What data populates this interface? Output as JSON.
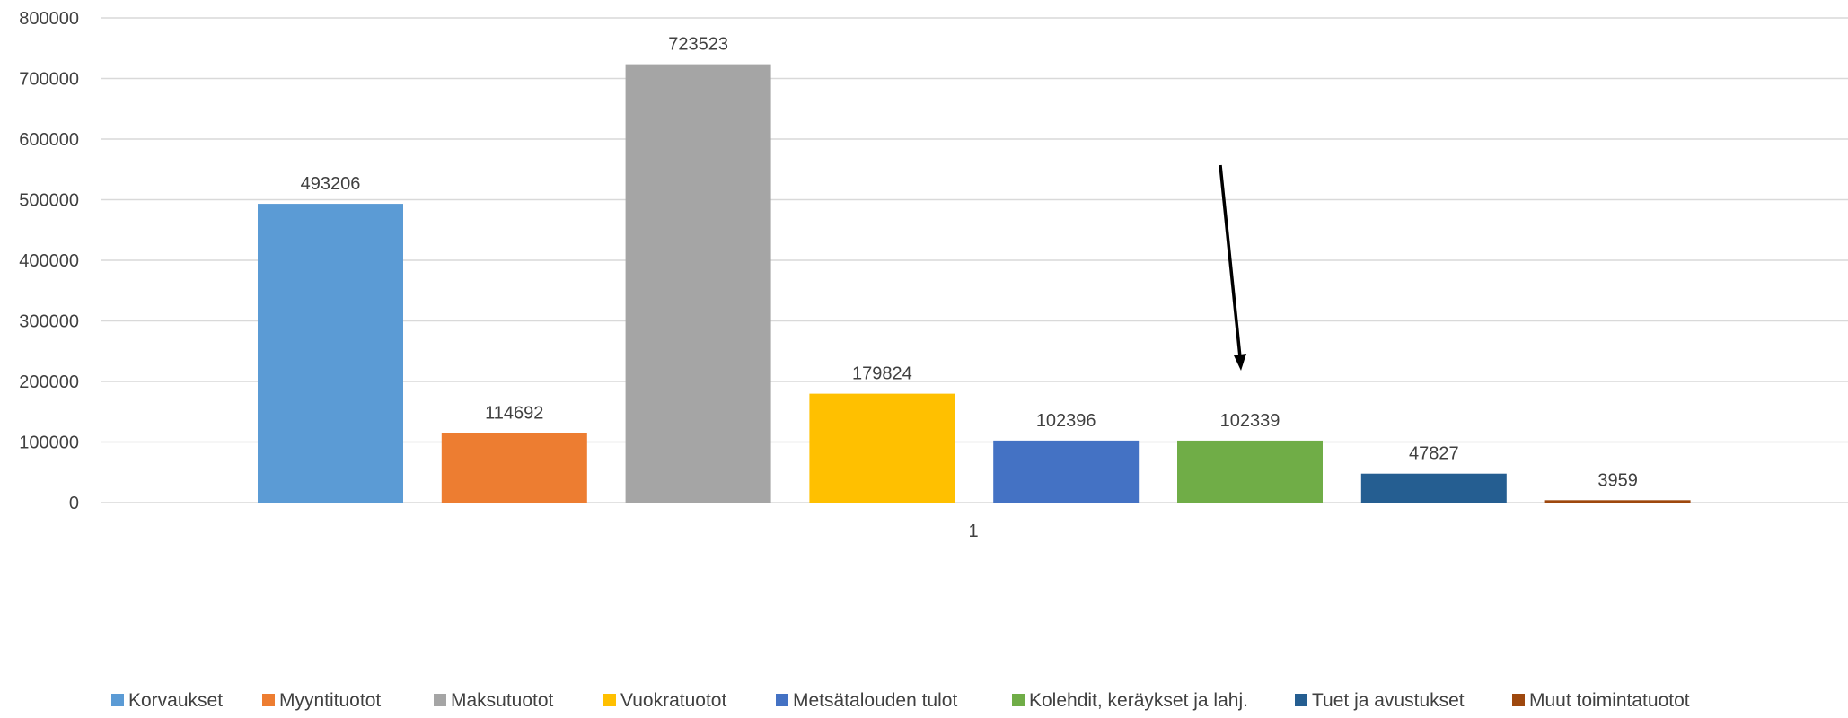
{
  "chart_data": {
    "type": "bar",
    "title": "",
    "xlabel": "",
    "ylabel": "",
    "categories": [
      "1"
    ],
    "ylim": [
      0,
      800000
    ],
    "yticks": [
      0,
      100000,
      200000,
      300000,
      400000,
      500000,
      600000,
      700000,
      800000
    ],
    "ytick_labels": [
      "0",
      "100000",
      "200000",
      "300000",
      "400000",
      "500000",
      "600000",
      "700000",
      "800000"
    ],
    "grid": true,
    "legend_position": "bottom",
    "series": [
      {
        "name": "Korvaukset",
        "values": [
          493206
        ],
        "label": "493206",
        "color": "#5B9BD5"
      },
      {
        "name": "Myyntituotot",
        "values": [
          114692
        ],
        "label": "114692",
        "color": "#ED7D31"
      },
      {
        "name": "Maksutuotot",
        "values": [
          723523
        ],
        "label": "723523",
        "color": "#A5A5A5"
      },
      {
        "name": "Vuokratuotot",
        "values": [
          179824
        ],
        "label": "179824",
        "color": "#FFC000"
      },
      {
        "name": "Metsätalouden tulot",
        "values": [
          102396
        ],
        "label": "102396",
        "color": "#4472C4"
      },
      {
        "name": "Kolehdit, keräykset ja lahj.",
        "values": [
          102339
        ],
        "label": "102339",
        "color": "#70AD47"
      },
      {
        "name": "Tuet ja avustukset",
        "values": [
          47827
        ],
        "label": "47827",
        "color": "#255E91"
      },
      {
        "name": "Muut toimintatuotot",
        "values": [
          3959
        ],
        "label": "3959",
        "color": "#9E480E"
      }
    ],
    "annotations": [
      {
        "type": "arrow",
        "points_to_series": "Kolehdit, keräykset ja lahj.",
        "color": "#000000"
      }
    ]
  }
}
